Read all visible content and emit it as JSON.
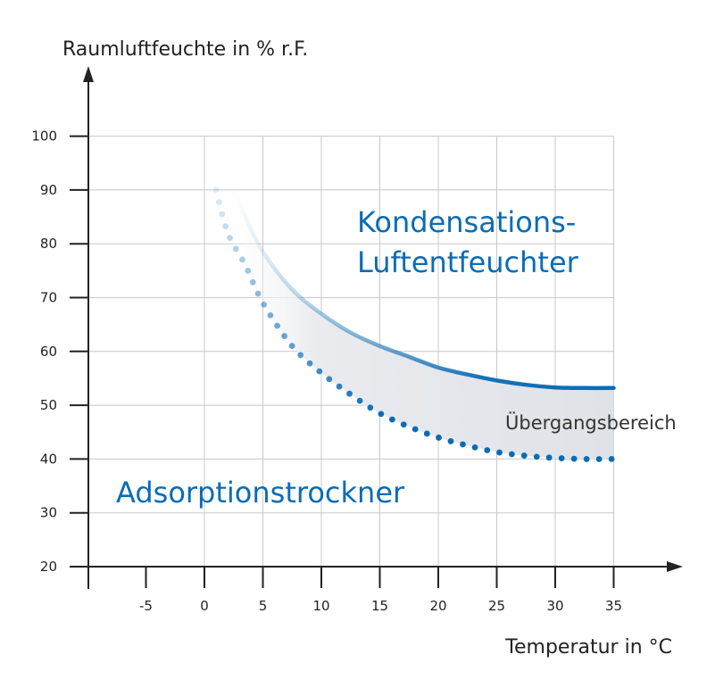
{
  "chart_data": {
    "type": "area",
    "ylabel": "Raumluftfeuchte in % r.F.",
    "xlabel": "Temperatur in °C",
    "xlim": [
      -10,
      35
    ],
    "ylim": [
      20,
      100
    ],
    "x_ticks": [
      -5,
      0,
      5,
      10,
      15,
      20,
      25,
      30,
      35
    ],
    "y_ticks": [
      20,
      30,
      40,
      50,
      60,
      70,
      80,
      90,
      100
    ],
    "grid": true,
    "grid_x": [
      0,
      5,
      10,
      15,
      20,
      25,
      30,
      35
    ],
    "grid_y": [
      30,
      40,
      50,
      60,
      70,
      80,
      90,
      100
    ],
    "series": [
      {
        "line_style": "solid",
        "color": "#0a6cb5",
        "x": [
          2.5,
          3.5,
          5,
          7.5,
          10,
          12.5,
          15,
          17.5,
          20,
          22.5,
          25,
          27.5,
          30,
          32.5,
          35
        ],
        "values": [
          90,
          85,
          78.5,
          71.5,
          67,
          63.5,
          61,
          59,
          57,
          55.7,
          54.6,
          53.8,
          53.3,
          53.2,
          53.2
        ]
      },
      {
        "line_style": "dotted",
        "color": "#0a6cb5",
        "x": [
          1,
          2,
          3.5,
          5,
          7.5,
          10,
          12.5,
          15,
          17.5,
          20,
          22.5,
          25,
          27.5,
          30,
          32.5,
          35
        ],
        "values": [
          90,
          82,
          76,
          69,
          61,
          56,
          52,
          48.5,
          46,
          44,
          42.5,
          41.3,
          40.6,
          40.2,
          40,
          40
        ]
      }
    ],
    "annotations": {
      "upper_region": [
        "Kondensations-",
        "Luftentfeuchter"
      ],
      "lower_region": "Adsorptionstrockner",
      "band": "Übergangsbereich"
    },
    "colors": {
      "accent": "#0a6cb5",
      "band_fill": "#e6e8ec",
      "grid": "#c8c8c8",
      "axis": "#222222"
    }
  }
}
